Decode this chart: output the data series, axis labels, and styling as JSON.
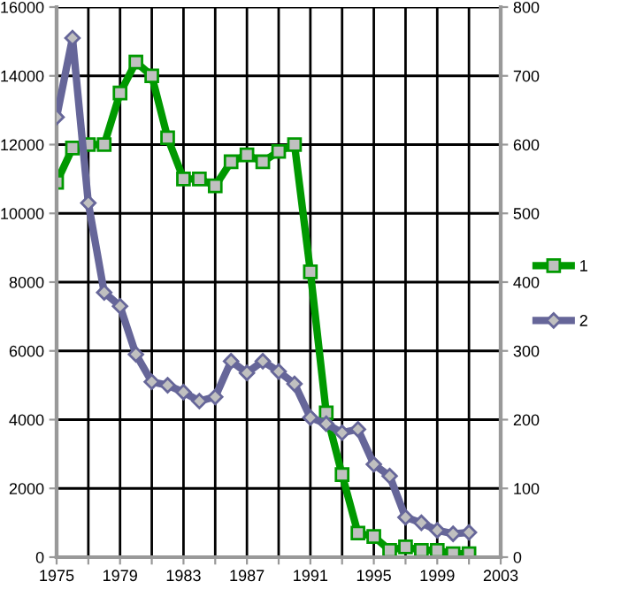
{
  "chart_data": {
    "type": "line",
    "x": [
      1975,
      1976,
      1977,
      1978,
      1979,
      1980,
      1981,
      1982,
      1983,
      1984,
      1985,
      1986,
      1987,
      1988,
      1989,
      1990,
      1991,
      1992,
      1993,
      1994,
      1995,
      1996,
      1997,
      1998,
      1999,
      2000,
      2001
    ],
    "series": [
      {
        "name": "1",
        "color": "#009900",
        "marker": "square",
        "values": [
          10900,
          11900,
          12000,
          12000,
          13500,
          14400,
          14000,
          12200,
          11000,
          11000,
          10800,
          11500,
          11700,
          11500,
          11800,
          12000,
          8300,
          4200,
          2400,
          700,
          600,
          200,
          300,
          200,
          200,
          100,
          100
        ]
      },
      {
        "name": "2",
        "color": "#666699",
        "marker": "diamond",
        "axis": "y2",
        "values": [
          640,
          755,
          515,
          385,
          365,
          295,
          255,
          250,
          240,
          227,
          233,
          285,
          268,
          285,
          270,
          252,
          203,
          194,
          181,
          186,
          135,
          118,
          58,
          50,
          39,
          34,
          36
        ]
      }
    ],
    "xlim": [
      1975,
      2003
    ],
    "xticks": [
      1975,
      {
        "value": 1977,
        "label": null
      },
      1979,
      {
        "value": 1981,
        "label": null
      },
      1983,
      {
        "value": 1985,
        "label": null
      },
      1987,
      {
        "value": 1989,
        "label": null
      },
      1991,
      {
        "value": 1993,
        "label": null
      },
      1995,
      {
        "value": 1997,
        "label": null
      },
      1999,
      {
        "value": 2001,
        "label": null
      },
      2003
    ],
    "ylim": [
      0,
      16000
    ],
    "yticks": [
      0,
      2000,
      4000,
      6000,
      8000,
      10000,
      12000,
      14000,
      16000
    ],
    "y2lim": [
      0,
      800
    ],
    "y2ticks": [
      0,
      100,
      200,
      300,
      400,
      500,
      600,
      700,
      800
    ],
    "grid": true,
    "legend": "right"
  }
}
